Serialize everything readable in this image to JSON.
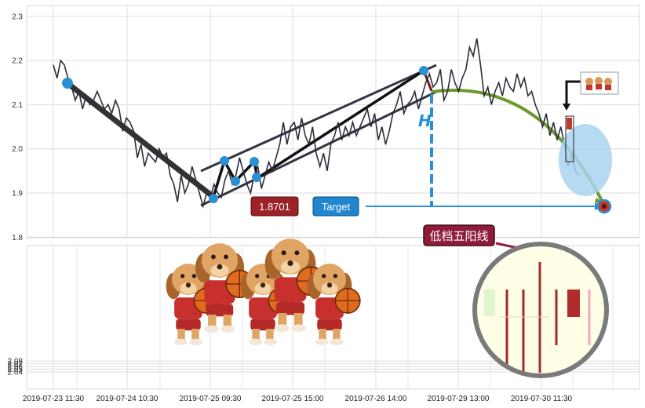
{
  "chart_data": [
    {
      "type": "line",
      "y_ticks": [
        "1.8",
        "1.9",
        "2.0",
        "2.1",
        "2.2",
        "2.3"
      ],
      "ylim": [
        1.79,
        2.33
      ],
      "grid": true,
      "series": [
        {
          "values": [
            2.19,
            2.16,
            2.2,
            2.19,
            2.16,
            2.14,
            2.11,
            2.13,
            2.09,
            2.12,
            2.1,
            2.11,
            2.13,
            2.11,
            2.09,
            2.1,
            2.08,
            2.11,
            2.09,
            2.04,
            2.07,
            2.06,
            2.04,
            1.98,
            2.01,
            1.96,
            1.99,
            1.98,
            1.97,
            2,
            1.98,
            1.99,
            1.94,
            1.92,
            1.88,
            1.94,
            1.9,
            1.92,
            1.96,
            1.93,
            1.9,
            1.87,
            1.9,
            1.89,
            1.92,
            1.9,
            1.89,
            1.93,
            1.95,
            1.92,
            1.94,
            1.98,
            1.95,
            1.92,
            1.9,
            1.94,
            1.96,
            1.91,
            1.94,
            1.97,
            1.95,
            1.98,
            2.01,
            2.06,
            2.01,
            2.05,
            2.06,
            2.02,
            2.07,
            2.03,
            2.01,
            2.05,
            1.99,
            1.96,
            1.99,
            1.95,
            2.01,
            2.03,
            2.06,
            2.02,
            2.05,
            2.03,
            2.06,
            2.03,
            2.05,
            2.07,
            2.09,
            2.05,
            2.08,
            2.02,
            2.05,
            2.01,
            2.04,
            2.08,
            2.1,
            2.13,
            2.08,
            2.1,
            2.11,
            2.13,
            2.09,
            2.12,
            2.15,
            2.17,
            2.14,
            2.15,
            2.18,
            2.11,
            2.13,
            2.18,
            2.15,
            2.13,
            2.16,
            2.18,
            2.23,
            2.21,
            2.25,
            2.19,
            2.12,
            2.14,
            2.1,
            2.13,
            2.15,
            2.12,
            2.16,
            2.14,
            2.13,
            2.17,
            2.14,
            2.16,
            2.12,
            2.13,
            2.1,
            2.08,
            2.05,
            2.08,
            2.03,
            2.06,
            2.02,
            2.05,
            2.01,
            1.96,
            1.99,
            1.95,
            1.94
          ]
        }
      ],
      "annotations": {
        "pattern_label": "H",
        "price_badge": "1.8701",
        "target_badge": "Target",
        "callout_text": "低档五阳线"
      }
    },
    {
      "type": "bar",
      "x_ticks": [
        "2019-07-23 11:30",
        "2019-07-24 10:30",
        "2019-07-25 09:30",
        "2019-07-25 15:00",
        "2019-07-26 14:00",
        "2019-07-29 13:00",
        "2019-07-30 11:30"
      ],
      "y_ticks": [
        "2.04",
        "2.05",
        "2.06",
        "2.07",
        "2.08"
      ],
      "ylim": [
        2.035,
        2.085
      ],
      "grid": true
    }
  ],
  "colors": {
    "price_line": "#2d2d3a",
    "pivot": "#2a90d6",
    "badge_red": "#9b2226",
    "badge_blue": "#1f86cf",
    "callout": "#8e1b3a",
    "arc": "#6b9a2a",
    "zoom_bg": "#fefde6",
    "zoom_ring": "#7a7a7a"
  }
}
